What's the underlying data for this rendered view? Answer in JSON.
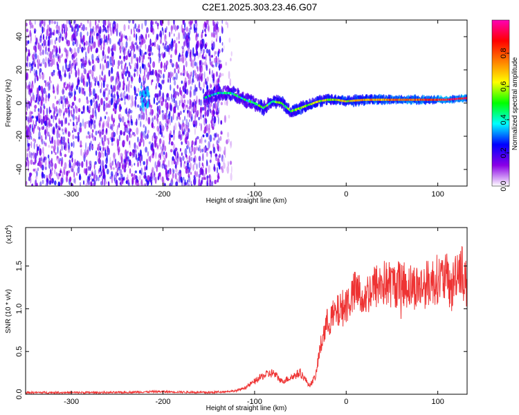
{
  "title": "C2E1.2025.303.23.46.G07",
  "chart_data": [
    {
      "type": "heatmap",
      "xlabel": "Height of straight line (km)",
      "ylabel": "Frequency (Hz)",
      "xlim": [
        -350,
        132
      ],
      "ylim": [
        -50,
        50
      ],
      "xticks": [
        -300,
        -200,
        -100,
        0,
        100
      ],
      "yticks": [
        -40,
        -20,
        0,
        20,
        40
      ],
      "grid": false,
      "colorbar": {
        "label": "Normalized spectral amplitude",
        "range": [
          0.0,
          1.0
        ],
        "ticks": [
          "0.0",
          "0.2",
          "0.4",
          "0.6",
          "0.8"
        ],
        "colormap": [
          "#ffffff",
          "#8a00e6",
          "#0000ff",
          "#00ffff",
          "#00ff00",
          "#ffff00",
          "#ff8000",
          "#ff0000",
          "#ff00b4"
        ]
      },
      "regions": [
        {
          "x_range": [
            -350,
            -135
          ],
          "freq_range": [
            -50,
            50
          ],
          "amplitude": 0.15,
          "description": "broadband noise"
        },
        {
          "x_range": [
            -225,
            -215
          ],
          "freq_range": [
            -4,
            10
          ],
          "amplitude": 0.35
        },
        {
          "x_range": [
            -135,
            -125
          ],
          "freq_range": [
            -50,
            50
          ],
          "amplitude": 0.05
        }
      ],
      "signal_track": [
        {
          "x": -155,
          "f": 3
        },
        {
          "x": -140,
          "f": 6
        },
        {
          "x": -125,
          "f": 6
        },
        {
          "x": -110,
          "f": 2
        },
        {
          "x": -100,
          "f": 0
        },
        {
          "x": -90,
          "f": -3
        },
        {
          "x": -80,
          "f": 1
        },
        {
          "x": -70,
          "f": 0
        },
        {
          "x": -60,
          "f": -5
        },
        {
          "x": -50,
          "f": -3
        },
        {
          "x": -40,
          "f": -1
        },
        {
          "x": -30,
          "f": 1
        },
        {
          "x": -20,
          "f": 2
        },
        {
          "x": -10,
          "f": 2
        },
        {
          "x": 0,
          "f": 1
        },
        {
          "x": 20,
          "f": 2
        },
        {
          "x": 50,
          "f": 2
        },
        {
          "x": 80,
          "f": 2
        },
        {
          "x": 110,
          "f": 2
        },
        {
          "x": 132,
          "f": 3
        }
      ]
    },
    {
      "type": "line",
      "xlabel": "Height of straight line (km)",
      "ylabel": "SNR (10 * v/v)",
      "multiplier": "(x10",
      "multiplier_exp": "4",
      "multiplier_close": ")",
      "xlim": [
        -350,
        132
      ],
      "ylim": [
        0,
        1.95
      ],
      "xticks": [
        -300,
        -200,
        -100,
        0,
        100
      ],
      "yticks": [
        "0.0",
        "0.5",
        "1.0",
        "1.5"
      ],
      "grid": false,
      "series": [
        {
          "color": "#ee3333",
          "points": [
            [
              -350,
              0.02
            ],
            [
              -300,
              0.02
            ],
            [
              -250,
              0.02
            ],
            [
              -210,
              0.03
            ],
            [
              -200,
              0.03
            ],
            [
              -150,
              0.02
            ],
            [
              -120,
              0.04
            ],
            [
              -110,
              0.08
            ],
            [
              -100,
              0.15
            ],
            [
              -90,
              0.22
            ],
            [
              -80,
              0.25
            ],
            [
              -70,
              0.15
            ],
            [
              -60,
              0.2
            ],
            [
              -50,
              0.25
            ],
            [
              -45,
              0.18
            ],
            [
              -40,
              0.1
            ],
            [
              -33,
              0.22
            ],
            [
              -30,
              0.45
            ],
            [
              -25,
              0.7
            ],
            [
              -20,
              0.85
            ],
            [
              -10,
              0.95
            ],
            [
              0,
              1.05
            ],
            [
              10,
              1.2
            ],
            [
              20,
              1.15
            ],
            [
              30,
              1.25
            ],
            [
              40,
              1.3
            ],
            [
              50,
              1.28
            ],
            [
              60,
              1.3
            ],
            [
              70,
              1.27
            ],
            [
              80,
              1.25
            ],
            [
              90,
              1.3
            ],
            [
              100,
              1.35
            ],
            [
              110,
              1.35
            ],
            [
              115,
              1.2
            ],
            [
              120,
              1.45
            ],
            [
              125,
              1.5
            ],
            [
              132,
              1.25
            ]
          ]
        }
      ]
    }
  ]
}
